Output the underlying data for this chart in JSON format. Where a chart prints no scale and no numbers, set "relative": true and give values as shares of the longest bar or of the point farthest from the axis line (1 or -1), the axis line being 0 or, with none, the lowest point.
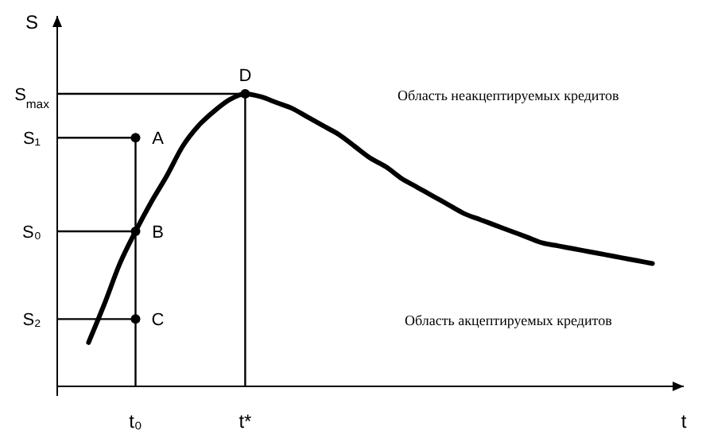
{
  "chart_data": {
    "type": "line",
    "relative": true,
    "xlabel": "t",
    "ylabel": "S",
    "categories": [
      null,
      null,
      null,
      null,
      null,
      "t₀",
      null,
      null,
      null,
      null,
      null,
      null,
      "t*",
      null,
      null,
      null,
      null,
      null,
      null,
      null,
      null,
      null,
      null,
      null,
      null,
      null,
      null,
      null,
      null,
      null,
      null,
      null,
      null,
      null,
      null,
      null,
      null,
      null,
      null,
      null,
      null
    ],
    "grid": false,
    "series": [
      {
        "color": "#000000",
        "values": [
          null,
          null,
          0.15,
          0.28,
          0.42,
          0.53,
          0.63,
          0.72,
          0.82,
          0.89,
          0.94,
          0.98,
          1,
          0.99,
          0.97,
          0.95,
          0.92,
          0.89,
          0.86,
          0.82,
          0.78,
          0.75,
          0.71,
          0.68,
          0.65,
          0.62,
          0.59,
          0.57,
          0.55,
          0.53,
          0.51,
          0.49,
          0.48,
          0.47,
          0.46,
          0.45,
          0.44,
          0.43,
          0.42,
          null,
          null
        ]
      },
      {
        "type": "scatter",
        "marker": "circle",
        "color": "#000000",
        "x": [
          "t₀",
          "t₀",
          "t₀",
          "t*"
        ],
        "values": [
          0.85,
          0.53,
          0.23,
          1
        ]
      }
    ],
    "ref_lines": [
      {
        "axis": "y",
        "value": 1,
        "label": "S$_{max}$"
      },
      {
        "axis": "y",
        "value": 0.85,
        "label": "S₁"
      },
      {
        "axis": "y",
        "value": 0.53,
        "label": "S₀"
      },
      {
        "axis": "y",
        "value": 0.23,
        "label": "S₂"
      },
      {
        "axis": "x",
        "value": "t₀"
      },
      {
        "axis": "x",
        "value": "t*"
      }
    ],
    "annotations": [
      {
        "text": "A",
        "x": "t₀",
        "y": 0.85
      },
      {
        "text": "B",
        "x": "t₀",
        "y": 0.53
      },
      {
        "text": "C",
        "x": "t₀",
        "y": 0.23
      },
      {
        "text": "D",
        "x": "t*",
        "y": 1
      },
      "Область неакцептируемых кредитов",
      "Область акцептируемых кредитов"
    ]
  }
}
